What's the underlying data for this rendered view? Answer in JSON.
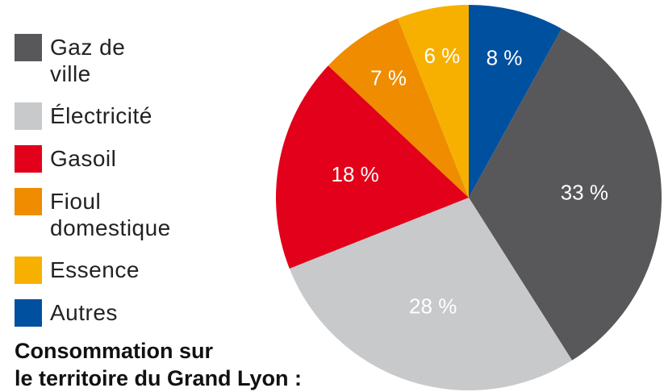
{
  "chart_data": {
    "type": "pie",
    "title": [
      "Consommation sur",
      "le territoire du Grand Lyon :"
    ],
    "categories": [
      "Gaz de ville",
      "Électricité",
      "Gasoil",
      "Fioul domestique",
      "Essence",
      "Autres"
    ],
    "values": [
      33,
      28,
      18,
      7,
      6,
      8
    ],
    "value_labels": [
      "33 %",
      "28 %",
      "18 %",
      "7 %",
      "6 %",
      "8 %"
    ],
    "colors": [
      "#58585a",
      "#c8c9cb",
      "#e2001a",
      "#ef8c00",
      "#f7b000",
      "#0050a0"
    ],
    "legend": "left"
  }
}
